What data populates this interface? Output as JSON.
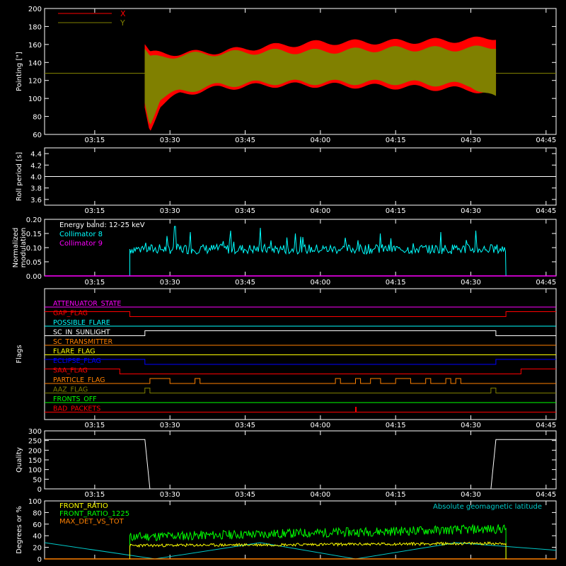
{
  "time_ticks": [
    "03:15",
    "03:30",
    "03:45",
    "04:00",
    "04:15",
    "04:30",
    "04:45"
  ],
  "colors": {
    "x": "#ff0000",
    "y": "#808000",
    "roll": "#ffffff",
    "c8": "#00ffff",
    "c9": "#ff00ff",
    "quality": "#ffffff",
    "front_ratio": "#ffff00",
    "front_ratio_1225": "#00ff00",
    "max_det": "#ff8000",
    "geolat": "#00c8c8"
  },
  "chart_data": [
    {
      "id": "pointing",
      "type": "area",
      "ylabel": "Pointing [\"]",
      "ylim": [
        60,
        200
      ],
      "yticks": [
        "60",
        "80",
        "100",
        "120",
        "140",
        "160",
        "180",
        "200"
      ],
      "time_range": [
        "03:05",
        "04:47"
      ],
      "legend": [
        "X",
        "Y"
      ],
      "baseline": 128,
      "active_range": [
        "03:25",
        "04:35"
      ],
      "series": [
        {
          "name": "X",
          "envelope": [
            {
              "t": "03:25",
              "lo": 90,
              "hi": 160
            },
            {
              "t": "03:26",
              "lo": 65,
              "hi": 150
            },
            {
              "t": "03:28",
              "lo": 92,
              "hi": 150
            },
            {
              "t": "03:32",
              "lo": 105,
              "hi": 150
            },
            {
              "t": "03:40",
              "lo": 112,
              "hi": 152
            },
            {
              "t": "03:50",
              "lo": 115,
              "hi": 158
            },
            {
              "t": "04:00",
              "lo": 115,
              "hi": 162
            },
            {
              "t": "04:15",
              "lo": 113,
              "hi": 163
            },
            {
              "t": "04:30",
              "lo": 110,
              "hi": 165
            },
            {
              "t": "04:35",
              "lo": 105,
              "hi": 168
            }
          ]
        },
        {
          "name": "Y",
          "envelope": [
            {
              "t": "03:25",
              "lo": 95,
              "hi": 155
            },
            {
              "t": "03:26",
              "lo": 72,
              "hi": 145
            },
            {
              "t": "03:28",
              "lo": 100,
              "hi": 145
            },
            {
              "t": "03:32",
              "lo": 108,
              "hi": 148
            },
            {
              "t": "03:40",
              "lo": 115,
              "hi": 150
            },
            {
              "t": "03:50",
              "lo": 118,
              "hi": 152
            },
            {
              "t": "04:00",
              "lo": 118,
              "hi": 152
            },
            {
              "t": "04:15",
              "lo": 118,
              "hi": 155
            },
            {
              "t": "04:30",
              "lo": 115,
              "hi": 155
            },
            {
              "t": "04:35",
              "lo": 100,
              "hi": 158
            }
          ]
        }
      ]
    },
    {
      "id": "roll",
      "type": "line",
      "ylabel": "Roll period [s]",
      "ylim": [
        3.5,
        4.5
      ],
      "yticks": [
        "3.6",
        "3.8",
        "4.0",
        "4.2",
        "4.4"
      ],
      "series": [
        {
          "name": "",
          "value": 4.0
        }
      ]
    },
    {
      "id": "modulation",
      "type": "line",
      "ylabel": "Normalized modulation",
      "ylim": [
        0,
        0.2
      ],
      "yticks": [
        "0.00",
        "0.05",
        "0.10",
        "0.15",
        "0.20"
      ],
      "annotation": "Energy band: 12-25 keV",
      "active_range": [
        "03:22",
        "04:37"
      ],
      "series": [
        {
          "name": "Collimator 8",
          "typical": 0.095,
          "spikes": [
            {
              "t": "03:31",
              "v": 0.175
            },
            {
              "t": "03:34",
              "v": 0.155
            },
            {
              "t": "03:42",
              "v": 0.16
            },
            {
              "t": "03:48",
              "v": 0.17
            },
            {
              "t": "03:55",
              "v": 0.15
            },
            {
              "t": "04:05",
              "v": 0.165
            },
            {
              "t": "04:12",
              "v": 0.15
            },
            {
              "t": "04:24",
              "v": 0.155
            },
            {
              "t": "04:31",
              "v": 0.16
            }
          ]
        },
        {
          "name": "Collimator 9",
          "value": 0.0
        }
      ]
    },
    {
      "id": "flags",
      "type": "line",
      "ylabel": "Flags",
      "flags": [
        {
          "label": "ATTENUATOR_STATE",
          "color": "#ff00ff",
          "high": []
        },
        {
          "label": "GAP_FLAG",
          "color": "#ff0000",
          "high": [
            [
              "03:05",
              "03:22"
            ],
            [
              "04:37",
              "04:47"
            ]
          ]
        },
        {
          "label": "POSSIBLE_FLARE",
          "color": "#00ffff",
          "high": []
        },
        {
          "label": "SC_IN_SUNLIGHT",
          "color": "#ffffff",
          "high": [
            [
              "03:25",
              "04:35"
            ]
          ]
        },
        {
          "label": "SC_TRANSMITTER",
          "color": "#ff8000",
          "high": []
        },
        {
          "label": "FLARE_FLAG",
          "color": "#ffff00",
          "high": []
        },
        {
          "label": "ECLIPSE_FLAG",
          "color": "#0000ff",
          "high": [
            [
              "03:05",
              "03:25"
            ],
            [
              "04:35",
              "04:47"
            ]
          ]
        },
        {
          "label": "SAA_FLAG",
          "color": "#ff0000",
          "high": [
            [
              "03:05",
              "03:20"
            ],
            [
              "04:40",
              "04:47"
            ]
          ]
        },
        {
          "label": "PARTICLE_FLAG",
          "color": "#ff8000",
          "high": [
            [
              "03:26",
              "03:30"
            ],
            [
              "03:35",
              "03:36"
            ],
            [
              "04:03",
              "04:04"
            ],
            [
              "04:07",
              "04:08"
            ],
            [
              "04:10",
              "04:12"
            ],
            [
              "04:15",
              "04:18"
            ],
            [
              "04:21",
              "04:22"
            ],
            [
              "04:25",
              "04:26"
            ],
            [
              "04:27",
              "04:28"
            ]
          ]
        },
        {
          "label": "AAZ_FLAG",
          "color": "#808000",
          "high": [
            [
              "03:25",
              "03:26"
            ],
            [
              "04:34",
              "04:35"
            ]
          ]
        },
        {
          "label": "FRONTS_OFF",
          "color": "#00ff00",
          "high": []
        },
        {
          "label": "BAD_PACKETS",
          "color": "#ff0000",
          "high": [
            [
              "04:07",
              "04:07"
            ]
          ]
        }
      ]
    },
    {
      "id": "quality",
      "type": "line",
      "ylabel": "Quality",
      "ylim": [
        0,
        300
      ],
      "yticks": [
        "0",
        "50",
        "100",
        "150",
        "200",
        "250",
        "300"
      ],
      "series": [
        {
          "name": "",
          "points": [
            {
              "t": "03:05",
              "v": 255
            },
            {
              "t": "03:25",
              "v": 255
            },
            {
              "t": "03:26",
              "v": 0
            },
            {
              "t": "04:34",
              "v": 0
            },
            {
              "t": "04:35",
              "v": 255
            },
            {
              "t": "04:47",
              "v": 255
            }
          ]
        }
      ]
    },
    {
      "id": "ratios",
      "type": "line",
      "ylabel": "Degrees or %",
      "ylim": [
        0,
        100
      ],
      "yticks": [
        "0",
        "20",
        "40",
        "60",
        "80",
        "100"
      ],
      "annotation": "Absolute geomagnetic latitude",
      "active_range": [
        "03:22",
        "04:37"
      ],
      "series": [
        {
          "name": "FRONT_RATIO",
          "start": 23,
          "end": 27
        },
        {
          "name": "FRONT_RATIO_1225",
          "start": 38,
          "end": 52
        },
        {
          "name": "MAX_DET_VS_TOT",
          "value": 0
        },
        {
          "name": "Absolute geomagnetic latitude",
          "points": [
            {
              "t": "03:05",
              "v": 28
            },
            {
              "t": "03:27",
              "v": 0
            },
            {
              "t": "03:48",
              "v": 28
            },
            {
              "t": "04:07",
              "v": 0
            },
            {
              "t": "04:27",
              "v": 28
            },
            {
              "t": "04:47",
              "v": 15
            }
          ]
        }
      ]
    }
  ]
}
